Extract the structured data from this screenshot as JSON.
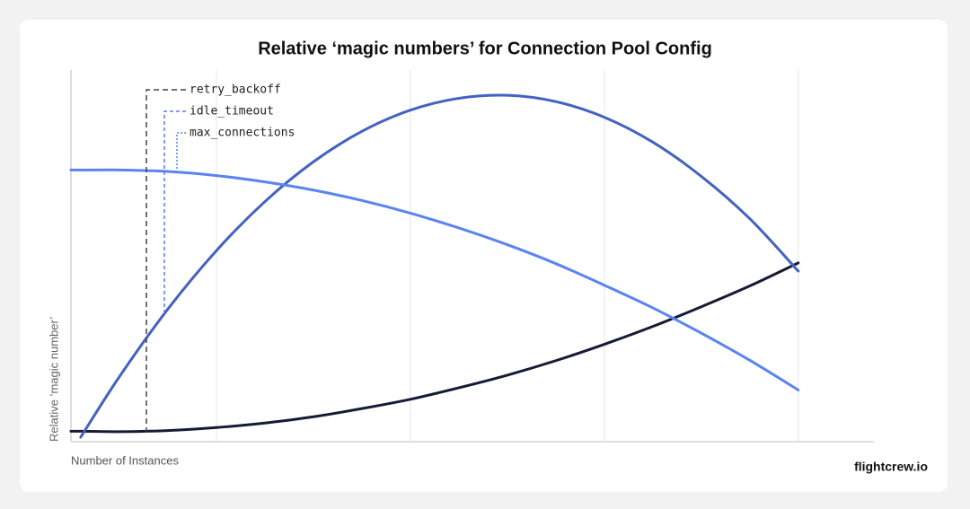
{
  "chart_data": {
    "type": "line",
    "title": "Relative ‘magic numbers’ for Connection Pool Config",
    "x_label": "Number of Instances",
    "y_label": "Relative ‘magic number’",
    "brand": "flightcrew.io",
    "x": [
      -0.75,
      -0.7,
      -0.5,
      -0.25,
      0,
      0.25,
      0.5,
      0.75,
      1,
      1.25,
      1.5,
      1.75,
      2,
      2.25,
      2.5,
      2.75,
      3
    ],
    "xlim": [
      -0.75,
      3.39
    ],
    "ylim": [
      0,
      100
    ],
    "xticks": [
      0,
      1,
      2,
      3
    ],
    "grid": true,
    "series": [
      {
        "name": "retry_backoff",
        "color": "#161b35",
        "legend_color": "#444444",
        "legend_dash": "6 4",
        "values": [
          2.8,
          2.8,
          2.7,
          3.0,
          3.8,
          5.0,
          6.7,
          8.9,
          11.4,
          14.5,
          17.9,
          21.8,
          26.2,
          31.0,
          36.3,
          41.9,
          48.1
        ]
      },
      {
        "name": "idle_timeout",
        "color": "#4462c0",
        "legend_color": "#5a7ee0",
        "legend_dash": "4 3",
        "values": [
          null,
          1.2,
          17.5,
          35.7,
          51.4,
          64.6,
          75.3,
          83.5,
          89.2,
          92.4,
          93.2,
          91.5,
          87.3,
          80.6,
          71.4,
          60.0,
          45.9
        ]
      },
      {
        "name": "max_connections",
        "color": "#5a84ee",
        "legend_color": "#5a84ee",
        "legend_dash": "2 2",
        "values": [
          73.1,
          73.1,
          73.1,
          72.7,
          71.6,
          69.9,
          67.7,
          64.9,
          61.5,
          57.5,
          53.0,
          47.9,
          42.1,
          36.0,
          29.2,
          21.9,
          13.9
        ]
      }
    ]
  }
}
